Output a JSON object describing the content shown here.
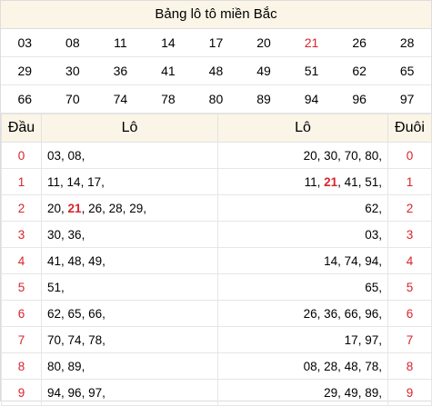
{
  "title": "Bảng lô tô miền Bắc",
  "numbers": [
    [
      "03",
      "08",
      "11",
      "14",
      "17",
      "20",
      "21",
      "26",
      "28"
    ],
    [
      "29",
      "30",
      "36",
      "41",
      "48",
      "49",
      "51",
      "62",
      "65"
    ],
    [
      "66",
      "70",
      "74",
      "78",
      "80",
      "89",
      "94",
      "96",
      "97"
    ]
  ],
  "highlight": "21",
  "headers": {
    "dau": "Đầu",
    "lo_left": "Lô",
    "lo_right": "Lô",
    "duoi": "Đuôi"
  },
  "rows": [
    {
      "dau": "0",
      "left": [
        "03",
        "08"
      ],
      "right": [
        "20",
        "30",
        "70",
        "80"
      ],
      "duoi": "0"
    },
    {
      "dau": "1",
      "left": [
        "11",
        "14",
        "17"
      ],
      "right": [
        "11",
        "21",
        "41",
        "51"
      ],
      "duoi": "1"
    },
    {
      "dau": "2",
      "left": [
        "20",
        "21",
        "26",
        "28",
        "29"
      ],
      "right": [
        "62"
      ],
      "duoi": "2"
    },
    {
      "dau": "3",
      "left": [
        "30",
        "36"
      ],
      "right": [
        "03"
      ],
      "duoi": "3"
    },
    {
      "dau": "4",
      "left": [
        "41",
        "48",
        "49"
      ],
      "right": [
        "14",
        "74",
        "94"
      ],
      "duoi": "4"
    },
    {
      "dau": "5",
      "left": [
        "51"
      ],
      "right": [
        "65"
      ],
      "duoi": "5"
    },
    {
      "dau": "6",
      "left": [
        "62",
        "65",
        "66"
      ],
      "right": [
        "26",
        "36",
        "66",
        "96"
      ],
      "duoi": "6"
    },
    {
      "dau": "7",
      "left": [
        "70",
        "74",
        "78"
      ],
      "right": [
        "17",
        "97"
      ],
      "duoi": "7"
    },
    {
      "dau": "8",
      "left": [
        "80",
        "89"
      ],
      "right": [
        "08",
        "28",
        "48",
        "78"
      ],
      "duoi": "8"
    },
    {
      "dau": "9",
      "left": [
        "94",
        "96",
        "97"
      ],
      "right": [
        "29",
        "49",
        "89"
      ],
      "duoi": "9"
    }
  ]
}
